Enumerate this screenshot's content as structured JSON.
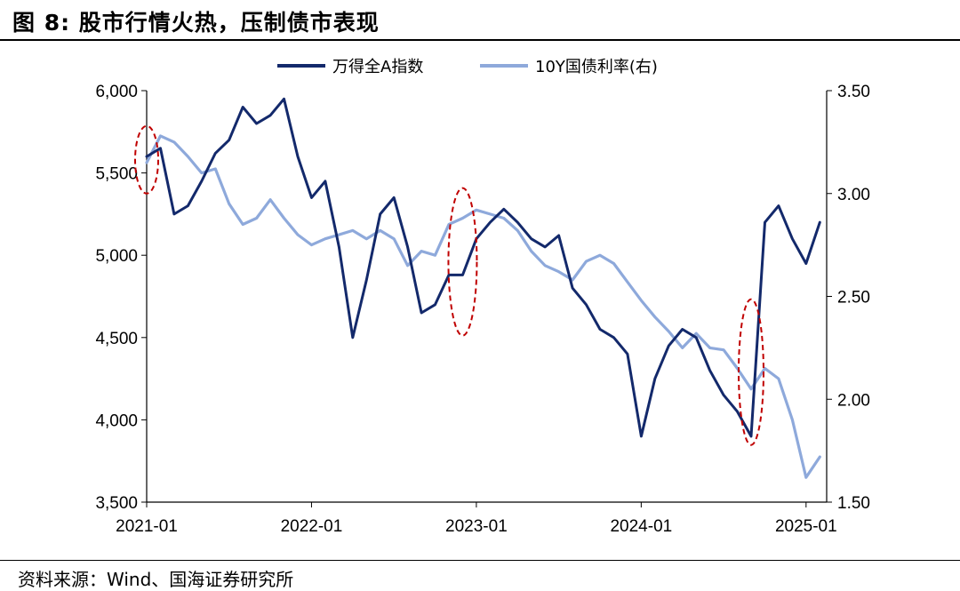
{
  "title": "图 8:  股市行情火热，压制债市表现",
  "source": "资料来源：Wind、国海证券研究所",
  "chart_data": {
    "type": "line",
    "title": "",
    "xlabel": "",
    "ylabel": "",
    "x_ticks": [
      "2021-01",
      "2022-01",
      "2023-01",
      "2024-01",
      "2025-01"
    ],
    "y_left": {
      "ylim": [
        3500,
        6000
      ],
      "ticks": [
        "3,500",
        "4,000",
        "4,500",
        "5,000",
        "5,500",
        "6,000"
      ],
      "tick_values": [
        3500,
        4000,
        4500,
        5000,
        5500,
        6000
      ]
    },
    "y_right": {
      "ylim": [
        1.5,
        3.5
      ],
      "ticks": [
        "1.50",
        "2.00",
        "2.50",
        "3.00",
        "3.50"
      ],
      "tick_values": [
        1.5,
        2.0,
        2.5,
        3.0,
        3.5
      ]
    },
    "x_range": [
      "2021-01",
      "2025-02"
    ],
    "legend_position": "top",
    "grid": false,
    "series": [
      {
        "name": "万得全A指数",
        "axis": "left",
        "color": "#13296b",
        "x": [
          "2021-01",
          "2021-02",
          "2021-03",
          "2021-04",
          "2021-05",
          "2021-06",
          "2021-07",
          "2021-08",
          "2021-09",
          "2021-10",
          "2021-11",
          "2021-12",
          "2022-01",
          "2022-02",
          "2022-03",
          "2022-04",
          "2022-05",
          "2022-06",
          "2022-07",
          "2022-08",
          "2022-09",
          "2022-10",
          "2022-11",
          "2022-12",
          "2023-01",
          "2023-02",
          "2023-03",
          "2023-04",
          "2023-05",
          "2023-06",
          "2023-07",
          "2023-08",
          "2023-09",
          "2023-10",
          "2023-11",
          "2023-12",
          "2024-01",
          "2024-02",
          "2024-03",
          "2024-04",
          "2024-05",
          "2024-06",
          "2024-07",
          "2024-08",
          "2024-09",
          "2024-10",
          "2024-11",
          "2024-12",
          "2025-01",
          "2025-02"
        ],
        "values": [
          5600,
          5650,
          5250,
          5300,
          5450,
          5620,
          5700,
          5900,
          5800,
          5850,
          5950,
          5600,
          5350,
          5450,
          5050,
          4500,
          4850,
          5250,
          5350,
          5050,
          4650,
          4700,
          4880,
          4880,
          5100,
          5200,
          5280,
          5200,
          5100,
          5050,
          5120,
          4800,
          4700,
          4550,
          4500,
          4400,
          3900,
          4250,
          4450,
          4550,
          4500,
          4300,
          4150,
          4050,
          3900,
          5200,
          5300,
          5100,
          4950,
          5200
        ]
      },
      {
        "name": "10Y国债利率(右)",
        "axis": "right",
        "color": "#8ea9db",
        "x": [
          "2021-01",
          "2021-02",
          "2021-03",
          "2021-04",
          "2021-05",
          "2021-06",
          "2021-07",
          "2021-08",
          "2021-09",
          "2021-10",
          "2021-11",
          "2021-12",
          "2022-01",
          "2022-02",
          "2022-03",
          "2022-04",
          "2022-05",
          "2022-06",
          "2022-07",
          "2022-08",
          "2022-09",
          "2022-10",
          "2022-11",
          "2022-12",
          "2023-01",
          "2023-02",
          "2023-03",
          "2023-04",
          "2023-05",
          "2023-06",
          "2023-07",
          "2023-08",
          "2023-09",
          "2023-10",
          "2023-11",
          "2023-12",
          "2024-01",
          "2024-02",
          "2024-03",
          "2024-04",
          "2024-05",
          "2024-06",
          "2024-07",
          "2024-08",
          "2024-09",
          "2024-10",
          "2024-11",
          "2024-12",
          "2025-01",
          "2025-02"
        ],
        "values": [
          3.15,
          3.28,
          3.25,
          3.18,
          3.1,
          3.12,
          2.95,
          2.85,
          2.88,
          2.97,
          2.88,
          2.8,
          2.75,
          2.78,
          2.8,
          2.82,
          2.78,
          2.82,
          2.78,
          2.65,
          2.72,
          2.7,
          2.85,
          2.88,
          2.92,
          2.9,
          2.88,
          2.82,
          2.72,
          2.65,
          2.62,
          2.58,
          2.67,
          2.7,
          2.66,
          2.57,
          2.48,
          2.4,
          2.33,
          2.25,
          2.32,
          2.25,
          2.24,
          2.15,
          2.05,
          2.15,
          2.1,
          1.9,
          1.62,
          1.72
        ]
      }
    ],
    "annotations": [
      {
        "shape": "ellipse",
        "style": "dashed",
        "color": "#c00000",
        "center_date": "2021-01",
        "center_value": 5580
      },
      {
        "shape": "ellipse",
        "style": "dashed",
        "color": "#c00000",
        "center_date": "2022-12",
        "center_value": 4960
      },
      {
        "shape": "ellipse",
        "style": "dashed",
        "color": "#c00000",
        "center_date": "2024-09",
        "center_value": 4290
      }
    ]
  }
}
